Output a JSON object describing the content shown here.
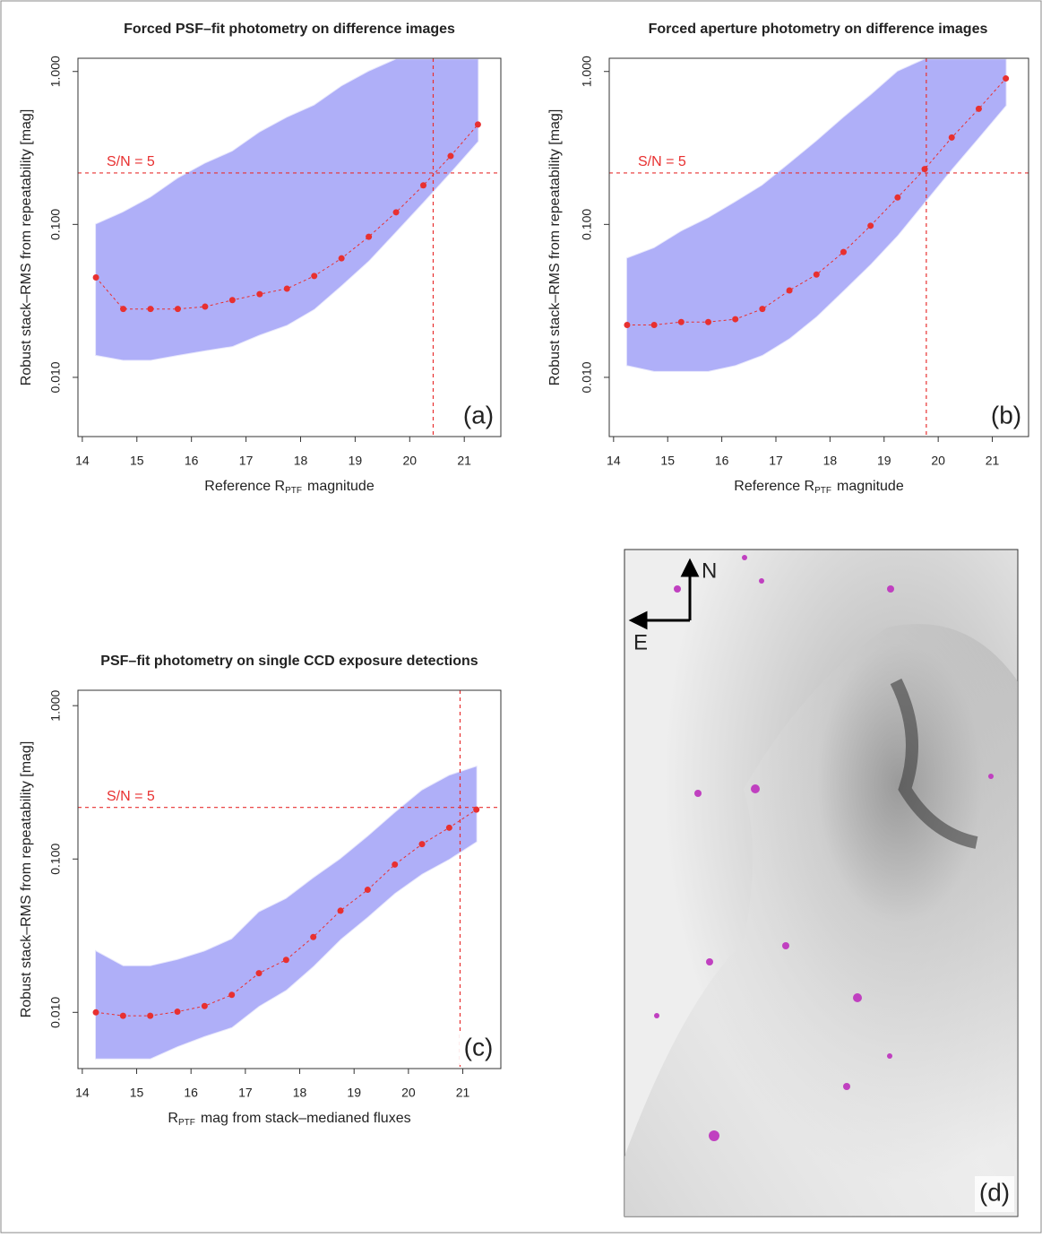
{
  "chart_data": [
    {
      "type": "scatter",
      "title": "Forced PSF–fit photometry on difference images",
      "x_label": {
        "pre": "Reference R",
        "sub": "PTF",
        "post": "magnitude"
      },
      "y_label": "Robust stack–RMS from repeatability [mag]",
      "panel_label": "(a)",
      "annotation": "S/N = 5",
      "log_y": true,
      "xlim": [
        13.92,
        21.67
      ],
      "ylim": [
        0.0041,
        1.22
      ],
      "xticks": [
        14,
        15,
        16,
        17,
        18,
        19,
        20,
        21
      ],
      "yticks": [
        {
          "value": 0.01,
          "label": "0.010"
        },
        {
          "value": 0.1,
          "label": "0.100"
        },
        {
          "value": 1,
          "label": "1.000"
        }
      ],
      "point_color": "#5050f0",
      "median_color": "#e83030",
      "snr_line": 0.217,
      "mag_limit": 20.43,
      "median": {
        "x": [
          14.25,
          14.75,
          15.25,
          15.75,
          16.25,
          16.75,
          17.25,
          17.75,
          18.25,
          18.75,
          19.25,
          19.75,
          20.25,
          20.75,
          21.25
        ],
        "values": [
          0.045,
          0.028,
          0.028,
          0.028,
          0.029,
          0.032,
          0.035,
          0.038,
          0.046,
          0.06,
          0.083,
          0.12,
          0.18,
          0.28,
          0.45
        ]
      },
      "spread": {
        "x": [
          14.25,
          14.75,
          15.25,
          15.75,
          16.25,
          16.75,
          17.25,
          17.75,
          18.25,
          18.75,
          19.25,
          19.75,
          20.25,
          20.75,
          21.25
        ],
        "low": [
          0.014,
          0.013,
          0.013,
          0.014,
          0.015,
          0.016,
          0.019,
          0.022,
          0.028,
          0.04,
          0.058,
          0.09,
          0.14,
          0.22,
          0.35
        ],
        "high": [
          0.1,
          0.12,
          0.15,
          0.2,
          0.25,
          0.3,
          0.4,
          0.5,
          0.6,
          0.8,
          1.0,
          1.2,
          1.2,
          1.2,
          1.2
        ]
      }
    },
    {
      "type": "scatter",
      "title": "Forced aperture photometry on difference images",
      "x_label": {
        "pre": "Reference R",
        "sub": "PTF",
        "post": "magnitude"
      },
      "y_label": "Robust stack–RMS from repeatability [mag]",
      "panel_label": "(b)",
      "annotation": "S/N = 5",
      "log_y": true,
      "xlim": [
        13.92,
        21.67
      ],
      "ylim": [
        0.0041,
        1.22
      ],
      "xticks": [
        14,
        15,
        16,
        17,
        18,
        19,
        20,
        21
      ],
      "yticks": [
        {
          "value": 0.01,
          "label": "0.010"
        },
        {
          "value": 0.1,
          "label": "0.100"
        },
        {
          "value": 1,
          "label": "1.000"
        }
      ],
      "point_color": "#5050f0",
      "median_color": "#e83030",
      "snr_line": 0.217,
      "mag_limit": 19.78,
      "median": {
        "x": [
          14.25,
          14.75,
          15.25,
          15.75,
          16.25,
          16.75,
          17.25,
          17.75,
          18.25,
          18.75,
          19.25,
          19.75,
          20.25,
          20.75,
          21.25
        ],
        "values": [
          0.022,
          0.022,
          0.023,
          0.023,
          0.024,
          0.028,
          0.037,
          0.047,
          0.066,
          0.098,
          0.15,
          0.23,
          0.37,
          0.57,
          0.9
        ]
      },
      "spread": {
        "x": [
          14.25,
          14.75,
          15.25,
          15.75,
          16.25,
          16.75,
          17.25,
          17.75,
          18.25,
          18.75,
          19.25,
          19.75,
          20.25,
          20.75,
          21.25
        ],
        "low": [
          0.012,
          0.011,
          0.011,
          0.011,
          0.012,
          0.014,
          0.018,
          0.025,
          0.037,
          0.055,
          0.085,
          0.14,
          0.23,
          0.37,
          0.6
        ],
        "high": [
          0.06,
          0.07,
          0.09,
          0.11,
          0.14,
          0.18,
          0.25,
          0.35,
          0.5,
          0.7,
          1.0,
          1.2,
          1.2,
          1.2,
          1.2
        ]
      }
    },
    {
      "type": "scatter",
      "title": "PSF–fit photometry on single CCD exposure detections",
      "x_label": {
        "pre": "R",
        "sub": "PTF",
        "post": "mag from stack–medianed fluxes"
      },
      "y_label": "Robust stack–RMS from repeatability [mag]",
      "panel_label": "(c)",
      "annotation": "S/N = 5",
      "log_y": true,
      "xlim": [
        13.92,
        21.7
      ],
      "ylim": [
        0.0043,
        1.26
      ],
      "xticks": [
        14,
        15,
        16,
        17,
        18,
        19,
        20,
        21
      ],
      "yticks": [
        {
          "value": 0.01,
          "label": "0.010"
        },
        {
          "value": 0.1,
          "label": "0.100"
        },
        {
          "value": 1,
          "label": "1.000"
        }
      ],
      "point_color": "#5050f0",
      "median_color": "#e83030",
      "snr_line": 0.217,
      "mag_limit": 20.95,
      "median": {
        "x": [
          14.25,
          14.75,
          15.25,
          15.75,
          16.25,
          16.75,
          17.25,
          17.75,
          18.25,
          18.75,
          19.25,
          19.75,
          20.25,
          20.75,
          21.25
        ],
        "values": [
          0.01,
          0.0095,
          0.0095,
          0.0101,
          0.011,
          0.013,
          0.018,
          0.022,
          0.031,
          0.046,
          0.063,
          0.092,
          0.125,
          0.16,
          0.21
        ]
      },
      "spread": {
        "x": [
          14.25,
          14.75,
          15.25,
          15.75,
          16.25,
          16.75,
          17.25,
          17.75,
          18.25,
          18.75,
          19.25,
          19.75,
          20.25,
          20.75,
          21.25
        ],
        "low": [
          0.005,
          0.005,
          0.005,
          0.006,
          0.007,
          0.008,
          0.011,
          0.014,
          0.02,
          0.03,
          0.042,
          0.06,
          0.08,
          0.1,
          0.13
        ],
        "high": [
          0.025,
          0.02,
          0.02,
          0.022,
          0.025,
          0.03,
          0.045,
          0.055,
          0.075,
          0.1,
          0.14,
          0.2,
          0.28,
          0.35,
          0.4
        ]
      }
    }
  ],
  "image_panel": {
    "north": "N",
    "east": "E",
    "label": "(d)"
  }
}
